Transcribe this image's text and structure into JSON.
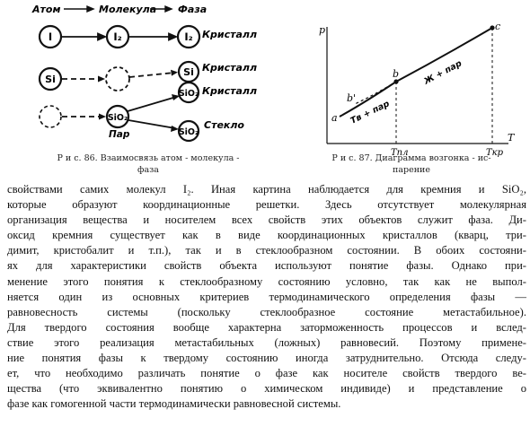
{
  "fig86": {
    "headers": {
      "atom": "Атом",
      "molecule": "Молекула",
      "phase": "Фаза"
    },
    "nodes": {
      "atom_i": "I",
      "mol_i2": "I₂",
      "phase_i2": "I₂",
      "atom_si": "Si",
      "phase_si": "Si",
      "phase_sio2_a": "SiO₂",
      "mol_sio2": "SiO₂",
      "phase_sio2_b": "SiO₂"
    },
    "labels": {
      "crystal_1": "Кристалл",
      "crystal_2": "Кристалл",
      "crystal_3": "Кристалл",
      "vapor": "Пар",
      "glass": "Стекло"
    },
    "caption": [
      "Р и с. 86. Взаимосвязь атом - молекула -",
      "фаза"
    ]
  },
  "fig87": {
    "axis_y": "p",
    "axis_x": "T",
    "points": {
      "a": "a",
      "b": "b",
      "b_prime": "b'",
      "c": "c"
    },
    "curve_labels": {
      "solid_vapor": "Тв + пар",
      "liquid_vapor": "Ж + пар"
    },
    "ticks": {
      "t_melt": "Tпл",
      "t_crit": "Tкр"
    },
    "caption": [
      "Р и с. 87. Диаграмма возгонка - ис-",
      "парение"
    ]
  },
  "body_lines": [
    "свойствами самих молекул I₂. Иная картина наблюдается для кремния и SiO₂,",
    "которые образуют координационные решетки. Здесь отсутствует молекулярная",
    "организация вещества и носителем всех свойств этих объектов служит фаза. Ди-",
    "оксид кремния существует как в виде координационных кристаллов (кварц, три-",
    "димит, кристобалит и т.п.), так и в стеклообразном состоянии. В обоих состояни-",
    "ях для характеристики свойств объекта используют понятие фазы. Однако при-",
    "менение этого понятия к стеклообразному состоянию условно, так как не выпол-",
    "няется один из основных критериев термодинамического определения фазы —",
    "равновесность системы (поскольку стеклообразное состояние метастабильное).",
    "Для твердого состояния вообще характерна заторможенность процессов и вслед-",
    "ствие этого реализация метастабильных (ложных) равновесий. Поэтому примене-",
    "ние понятия фазы к твердому состоянию иногда затруднительно. Отсюда следу-",
    "ет, что необходимо различать понятие о фазе как носителе свойств твердого ве-",
    "щества (что эквивалентно понятию о химическом индивиде) и представление о",
    "фазе как гомогенной части термодинамически равновесной системы."
  ]
}
